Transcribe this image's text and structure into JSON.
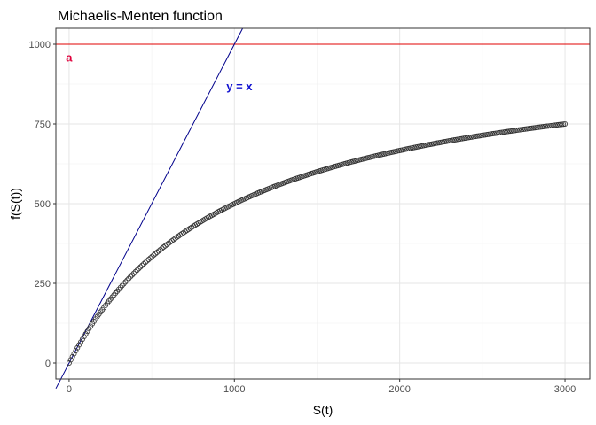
{
  "chart_data": {
    "type": "scatter",
    "title": "Michaelis-Menten function",
    "xlabel": "S(t)",
    "ylabel": "f(S(t))",
    "xlim": [
      -80,
      3150
    ],
    "ylim": [
      -50,
      1050
    ],
    "x_ticks": [
      0,
      1000,
      2000,
      3000
    ],
    "y_ticks": [
      0,
      250,
      500,
      750,
      1000
    ],
    "x_tick_labels": [
      "0",
      "1000",
      "2000",
      "3000"
    ],
    "y_tick_labels": [
      "0",
      "250",
      "500",
      "750",
      "1000"
    ],
    "grid": true,
    "function": {
      "a": 1000,
      "b": 1000,
      "x_min": 0,
      "x_max": 3000,
      "n_points": 300
    },
    "reference_lines": [
      {
        "kind": "hline",
        "y": 1000,
        "color": "#e00000",
        "label": "a"
      },
      {
        "kind": "abline",
        "intercept": 0,
        "slope": 1,
        "color": "#00008b",
        "label": "y = x"
      }
    ],
    "annotations": [
      {
        "text": "a",
        "x": 0,
        "y": 960,
        "color": "#e0003c"
      },
      {
        "text": "y = x",
        "x": 1030,
        "y": 870,
        "color": "#1010d0"
      }
    ],
    "point_color": "#333333"
  }
}
